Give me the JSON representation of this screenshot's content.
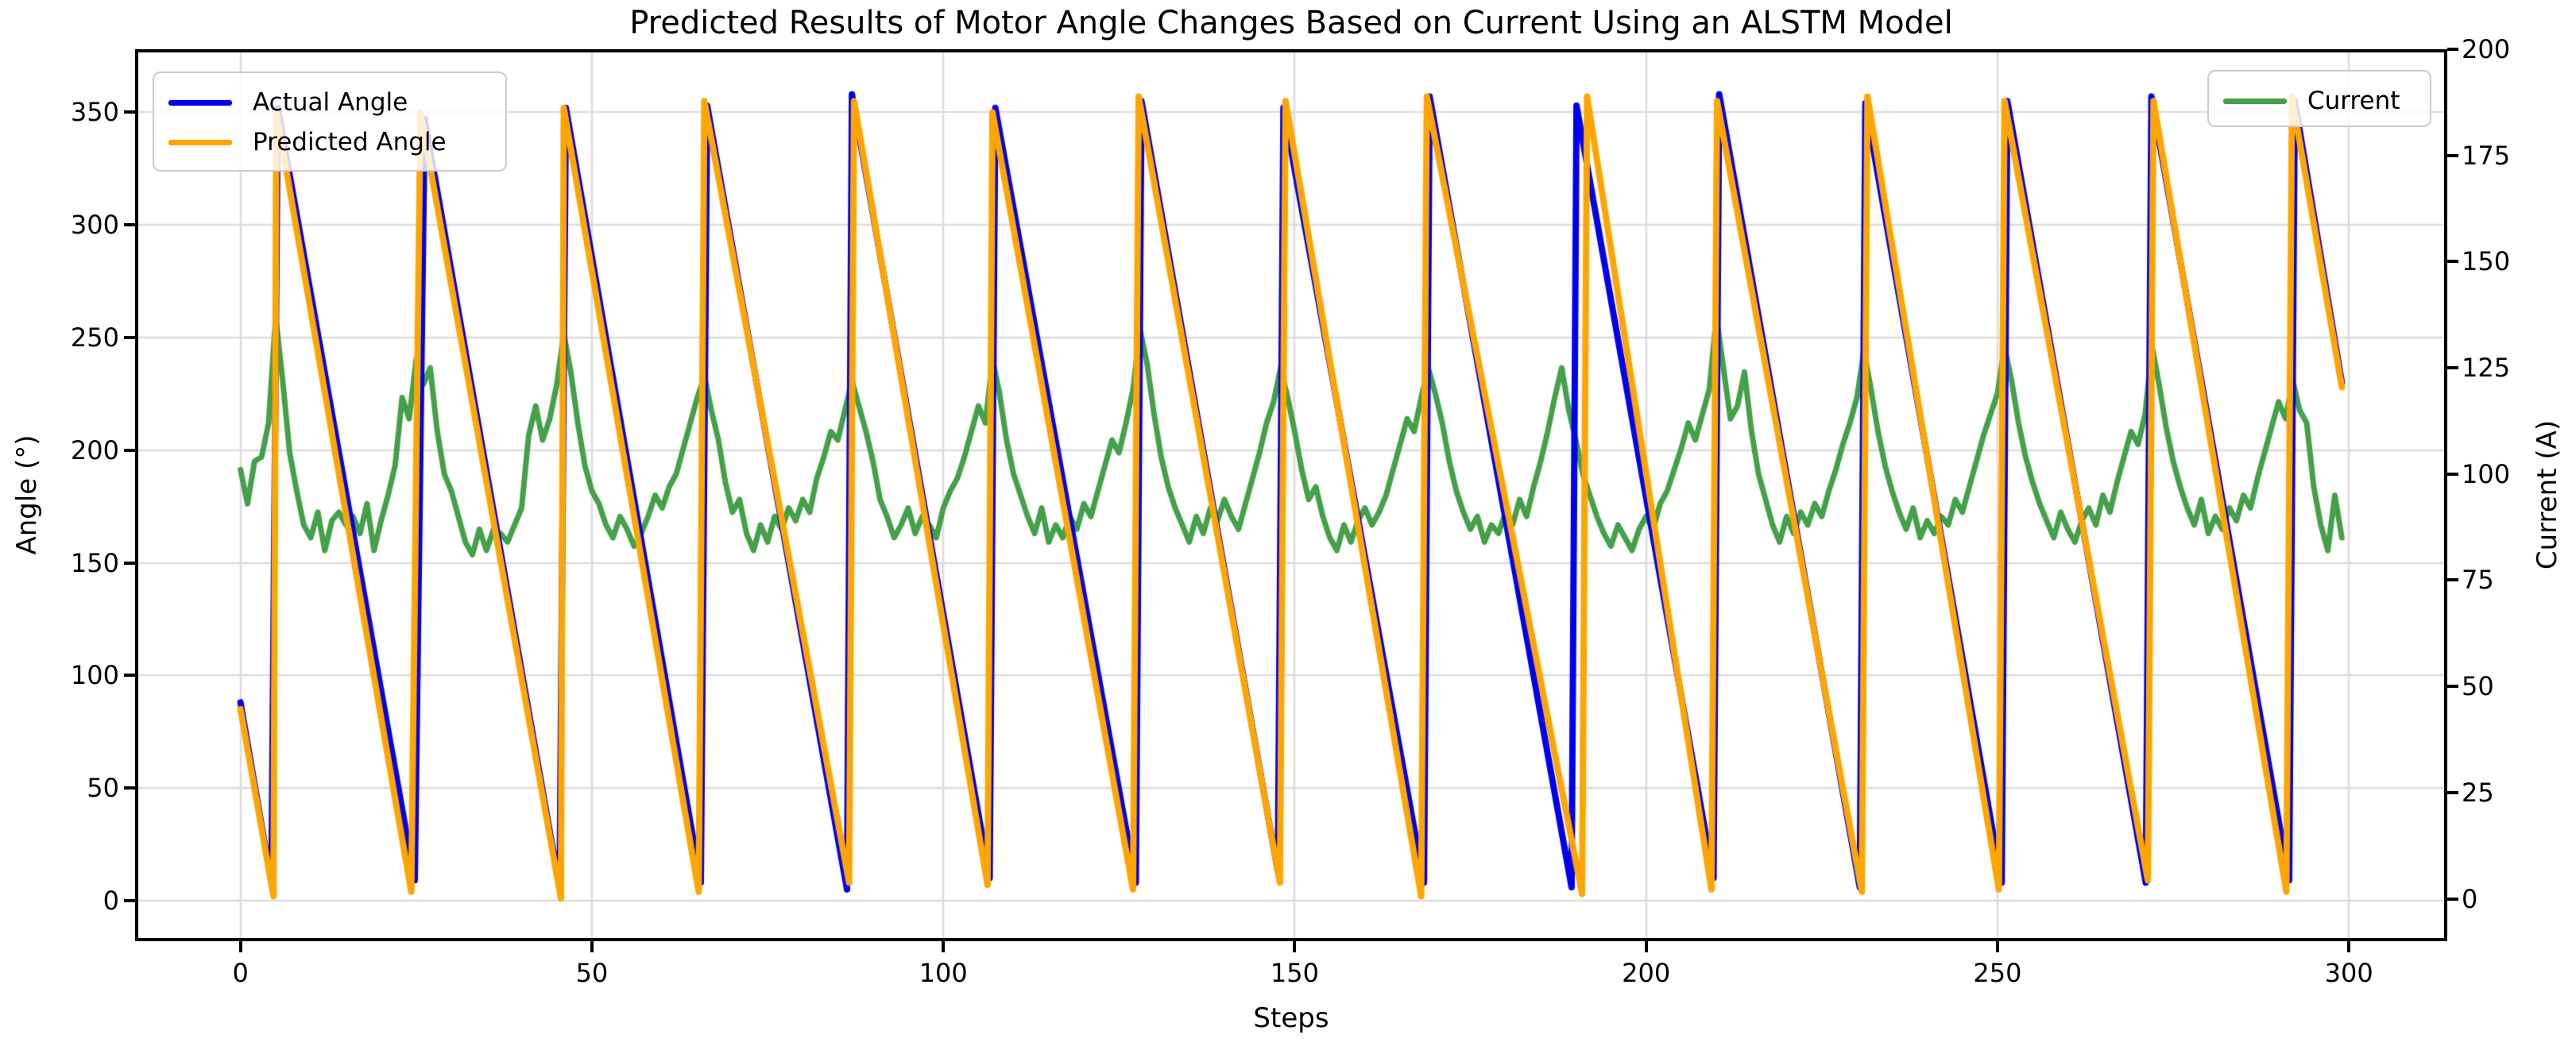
{
  "figure": {
    "title": "Predicted Results of Motor Angle Changes Based on Current Using an ALSTM Model",
    "xlabel": "Steps",
    "ylabel_left": "Angle (°)",
    "ylabel_right": "Current (A)"
  },
  "chart_data": {
    "type": "line",
    "title": "Predicted Results of Motor Angle Changes Based on Current Using an ALSTM Model",
    "xlabel": "Steps",
    "ylabel_left": "Angle (°)",
    "ylabel_right": "Current (A)",
    "xlim": [
      -15,
      314
    ],
    "ylim_left": [
      -18,
      378
    ],
    "ylim_right": [
      -10,
      200
    ],
    "xticks": [
      0,
      50,
      100,
      150,
      200,
      250,
      300
    ],
    "yticks_left": [
      0,
      50,
      100,
      150,
      200,
      250,
      300,
      350
    ],
    "yticks_right": [
      0,
      25,
      50,
      75,
      100,
      125,
      150,
      175,
      200
    ],
    "grid": true,
    "grid_color": "#dcdcdc",
    "background": "#ffffff",
    "legend_left_entries": [
      "Actual Angle",
      "Predicted Angle"
    ],
    "legend_right_entries": [
      "Current"
    ],
    "series": [
      {
        "name": "Actual Angle",
        "axis": "left",
        "color": "#0000ee",
        "width": 8,
        "points": [
          [
            0,
            88
          ],
          [
            4.4,
            8
          ],
          [
            5.3,
            352
          ],
          [
            24.8,
            9
          ],
          [
            26.2,
            347
          ],
          [
            45.4,
            6
          ],
          [
            46.3,
            352
          ],
          [
            65.5,
            8
          ],
          [
            66.4,
            353
          ],
          [
            86.3,
            5
          ],
          [
            87.0,
            358
          ],
          [
            106.6,
            10
          ],
          [
            107.4,
            352
          ],
          [
            127.4,
            8
          ],
          [
            128.2,
            355
          ],
          [
            147.6,
            13
          ],
          [
            148.4,
            352
          ],
          [
            168.4,
            8
          ],
          [
            169.2,
            357
          ],
          [
            189.4,
            6
          ],
          [
            190.1,
            353
          ],
          [
            209.6,
            10
          ],
          [
            210.4,
            358
          ],
          [
            230.4,
            6
          ],
          [
            231.2,
            354
          ],
          [
            250.6,
            8
          ],
          [
            251.4,
            355
          ],
          [
            271.1,
            8
          ],
          [
            271.9,
            357
          ],
          [
            291.5,
            9
          ],
          [
            292.3,
            355
          ],
          [
            299,
            230
          ]
        ]
      },
      {
        "name": "Predicted Angle",
        "axis": "left",
        "color": "#ffa500",
        "width": 8,
        "points": [
          [
            0,
            85
          ],
          [
            4.7,
            2
          ],
          [
            5.1,
            350
          ],
          [
            24.3,
            4
          ],
          [
            25.6,
            350
          ],
          [
            45.6,
            1
          ],
          [
            46.0,
            352
          ],
          [
            65.2,
            4
          ],
          [
            66.0,
            355
          ],
          [
            86.6,
            8
          ],
          [
            87.3,
            355
          ],
          [
            106.3,
            7
          ],
          [
            107.0,
            350
          ],
          [
            127.0,
            5
          ],
          [
            127.8,
            357
          ],
          [
            147.9,
            8
          ],
          [
            148.7,
            355
          ],
          [
            168.0,
            2
          ],
          [
            168.8,
            357
          ],
          [
            190.9,
            3
          ],
          [
            191.6,
            357
          ],
          [
            209.3,
            5
          ],
          [
            210.1,
            355
          ],
          [
            230.7,
            4
          ],
          [
            231.5,
            357
          ],
          [
            250.2,
            5
          ],
          [
            251.0,
            355
          ],
          [
            271.4,
            9
          ],
          [
            272.2,
            355
          ],
          [
            291.1,
            4
          ],
          [
            291.9,
            357
          ],
          [
            299,
            228
          ]
        ]
      },
      {
        "name": "Current",
        "axis": "right",
        "color": "#44a049",
        "width": 7,
        "x0": 0,
        "dx": 1,
        "values": [
          101,
          93,
          103,
          104,
          112,
          137,
          122,
          105,
          96,
          88,
          85,
          91,
          82,
          89,
          91,
          88,
          90,
          86,
          93,
          82,
          89,
          95,
          102,
          118,
          113,
          127,
          121,
          125,
          110,
          100,
          96,
          90,
          84,
          81,
          87,
          82,
          87,
          86,
          84,
          88,
          92,
          109,
          116,
          108,
          113,
          121,
          133,
          124,
          112,
          102,
          96,
          93,
          88,
          85,
          90,
          87,
          83,
          86,
          90,
          95,
          92,
          97,
          100,
          106,
          112,
          118,
          123,
          115,
          108,
          98,
          91,
          94,
          86,
          82,
          88,
          84,
          90,
          87,
          92,
          89,
          94,
          91,
          99,
          104,
          110,
          108,
          115,
          122,
          116,
          110,
          103,
          94,
          90,
          85,
          88,
          92,
          86,
          90,
          88,
          85,
          92,
          96,
          99,
          104,
          110,
          116,
          112,
          127,
          119,
          108,
          100,
          95,
          90,
          86,
          92,
          84,
          88,
          85,
          90,
          87,
          93,
          90,
          96,
          102,
          108,
          105,
          112,
          120,
          134,
          126,
          114,
          104,
          97,
          92,
          88,
          84,
          90,
          86,
          92,
          89,
          94,
          90,
          87,
          93,
          99,
          105,
          112,
          117,
          125,
          118,
          110,
          101,
          94,
          97,
          90,
          85,
          82,
          88,
          84,
          89,
          92,
          88,
          91,
          95,
          101,
          107,
          113,
          110,
          118,
          125,
          119,
          112,
          103,
          96,
          91,
          87,
          90,
          84,
          88,
          86,
          91,
          88,
          94,
          90,
          97,
          103,
          110,
          118,
          125,
          115,
          108,
          100,
          95,
          90,
          86,
          83,
          88,
          85,
          82,
          87,
          90,
          87,
          93,
          96,
          101,
          106,
          112,
          108,
          114,
          120,
          137,
          125,
          113,
          116,
          124,
          110,
          100,
          94,
          88,
          84,
          90,
          86,
          91,
          88,
          93,
          90,
          96,
          101,
          107,
          112,
          118,
          129,
          120,
          110,
          102,
          96,
          91,
          87,
          92,
          85,
          89,
          86,
          90,
          88,
          94,
          91,
          97,
          103,
          109,
          114,
          119,
          130,
          122,
          112,
          104,
          98,
          93,
          89,
          85,
          91,
          87,
          84,
          89,
          92,
          88,
          95,
          91,
          98,
          104,
          110,
          107,
          114,
          130,
          121,
          111,
          103,
          97,
          92,
          88,
          94,
          86,
          90,
          87,
          92,
          89,
          95,
          92,
          99,
          105,
          111,
          117,
          113,
          122,
          115,
          112,
          97,
          88,
          82,
          95,
          85
        ]
      }
    ]
  }
}
